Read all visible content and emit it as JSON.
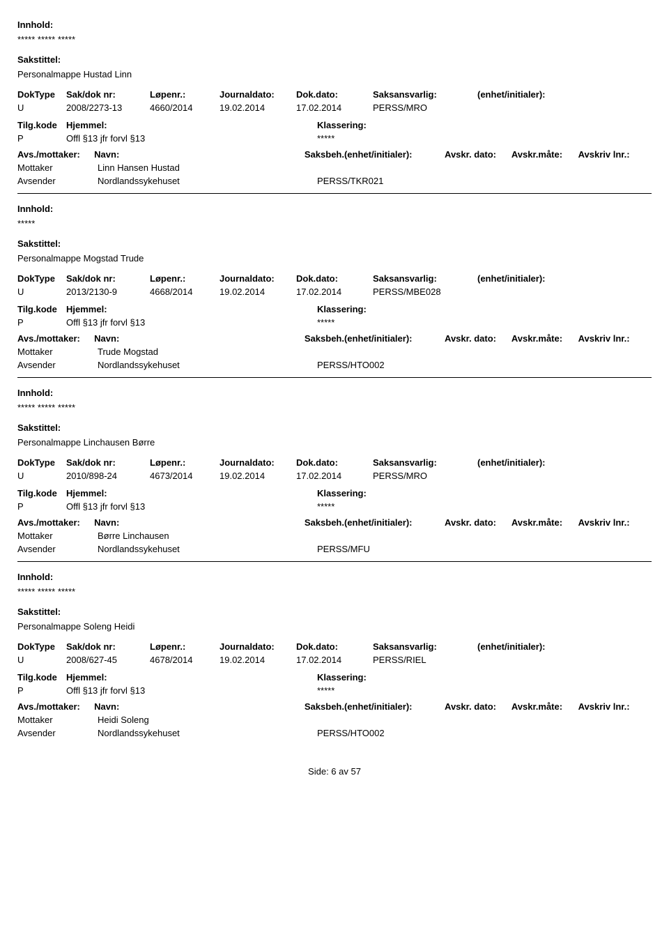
{
  "labels": {
    "innhold": "Innhold:",
    "sakstittel": "Sakstittel:",
    "doktype": "DokType",
    "sakdoknr": "Sak/dok nr:",
    "lopenr": "Løpenr.:",
    "journaldato": "Journaldato:",
    "dokdato": "Dok.dato:",
    "saksansvarlig": "Saksansvarlig:",
    "enhet_initialer": "(enhet/initialer):",
    "tilgkode": "Tilg.kode",
    "hjemmel": "Hjemmel:",
    "klassering": "Klassering:",
    "avs_mottaker": "Avs./mottaker:",
    "navn": "Navn:",
    "saksbeh": "Saksbeh.(enhet/initialer):",
    "avskr_dato": "Avskr. dato:",
    "avskr_mate": "Avskr.måte:",
    "avskriv_lnr": "Avskriv lnr.:",
    "mottaker": "Mottaker",
    "avsender": "Avsender"
  },
  "records": [
    {
      "innhold": "***** ***** *****",
      "sakstittel": "Personalmappe Hustad Linn",
      "doktype": "U",
      "sakdoknr": "2008/2273-13",
      "lopenr": "4660/2014",
      "journaldato": "19.02.2014",
      "dokdato": "17.02.2014",
      "saksansvarlig": "PERSS/MRO",
      "tilgkode": "P",
      "hjemmel": "Offl §13 jfr forvl §13",
      "klassering": "*****",
      "mottaker_navn": "Linn Hansen Hustad",
      "avsender_navn": "Nordlandssykehuset",
      "avsender_beh": "PERSS/TKR021"
    },
    {
      "innhold": "*****",
      "sakstittel": "Personalmappe Mogstad Trude",
      "doktype": "U",
      "sakdoknr": "2013/2130-9",
      "lopenr": "4668/2014",
      "journaldato": "19.02.2014",
      "dokdato": "17.02.2014",
      "saksansvarlig": "PERSS/MBE028",
      "tilgkode": "P",
      "hjemmel": "Offl §13 jfr forvl §13",
      "klassering": "*****",
      "mottaker_navn": "Trude Mogstad",
      "avsender_navn": "Nordlandssykehuset",
      "avsender_beh": "PERSS/HTO002"
    },
    {
      "innhold": "***** ***** *****",
      "sakstittel": "Personalmappe Linchausen Børre",
      "doktype": "U",
      "sakdoknr": "2010/898-24",
      "lopenr": "4673/2014",
      "journaldato": "19.02.2014",
      "dokdato": "17.02.2014",
      "saksansvarlig": "PERSS/MRO",
      "tilgkode": "P",
      "hjemmel": "Offl §13 jfr forvl §13",
      "klassering": "*****",
      "mottaker_navn": "Børre Linchausen",
      "avsender_navn": "Nordlandssykehuset",
      "avsender_beh": "PERSS/MFU"
    },
    {
      "innhold": "***** ***** *****",
      "sakstittel": "Personalmappe Soleng Heidi",
      "doktype": "U",
      "sakdoknr": "2008/627-45",
      "lopenr": "4678/2014",
      "journaldato": "19.02.2014",
      "dokdato": "17.02.2014",
      "saksansvarlig": "PERSS/RIEL",
      "tilgkode": "P",
      "hjemmel": "Offl §13 jfr forvl §13",
      "klassering": "*****",
      "mottaker_navn": "Heidi Soleng",
      "avsender_navn": "Nordlandssykehuset",
      "avsender_beh": "PERSS/HTO002"
    }
  ],
  "footer": "Side: 6 av 57"
}
